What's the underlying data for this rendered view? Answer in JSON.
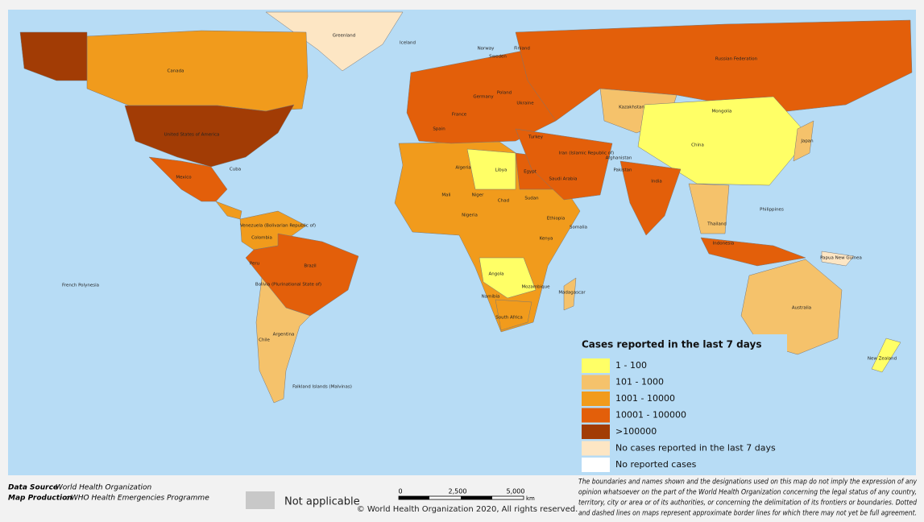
{
  "legend": {
    "title": "Cases reported in the last 7 days",
    "items": [
      {
        "label": "1 - 100",
        "color": "#ffff66"
      },
      {
        "label": "101 - 1000",
        "color": "#f5c26b"
      },
      {
        "label": "1001 - 10000",
        "color": "#f19b1c"
      },
      {
        "label": "10001 - 100000",
        "color": "#e35f0a"
      },
      {
        "label": ">100000",
        "color": "#a23c05"
      },
      {
        "label": "No cases reported in the last 7 days",
        "color": "#fde6c4"
      },
      {
        "label": "No reported cases",
        "color": "#ffffff"
      }
    ]
  },
  "country_labels": [
    "Canada",
    "United States of America",
    "Mexico",
    "Cuba",
    "Brazil",
    "Argentina",
    "Chile",
    "Peru",
    "Colombia",
    "Bolivia (Plurinational State of)",
    "Venezuela (Bolivarian Republic of)",
    "Falkland Islands (Malvinas)",
    "French Polynesia",
    "Greenland",
    "Iceland",
    "Russian Federation",
    "China",
    "Mongolia",
    "India",
    "Kazakhstan",
    "Japan",
    "Indonesia",
    "Philippines",
    "Thailand",
    "Papua New Guinea",
    "Australia",
    "New Zealand",
    "Algeria",
    "Libya",
    "Egypt",
    "Nigeria",
    "Sudan",
    "Chad",
    "Mali",
    "Niger",
    "Angola",
    "Namibia",
    "Ethiopia",
    "Kenya",
    "Somalia",
    "Mozambique",
    "Madagascar",
    "South Africa",
    "Saudi Arabia",
    "Iran (Islamic Republic of)",
    "Pakistan",
    "Afghanistan",
    "Turkey",
    "Ukraine",
    "Poland",
    "Germany",
    "France",
    "Spain",
    "Sweden",
    "Norway",
    "Finland"
  ],
  "footer": {
    "source_label": "Data Source",
    "source_value": ": World Health Organization",
    "production_label": "Map Production",
    "production_value": ": WHO Health Emergencies Programme",
    "not_applicable": "Not applicable",
    "scale": [
      "0",
      "2,500",
      "5,000",
      "km"
    ],
    "copyright": "© World Health Organization  2020,  All rights reserved.",
    "disclaimer": [
      "The boundaries and names shown and the designations used on this map do not imply the expression of any",
      "opinion whatsoever on the part of the World Health Organization concerning the legal status of any country,",
      "territory, city or area or of its authorities, or concerning the delimitation of its frontiers or boundaries. Dotted",
      "and dashed lines on maps represent approximate border lines for which there may not yet be full agreement."
    ]
  }
}
